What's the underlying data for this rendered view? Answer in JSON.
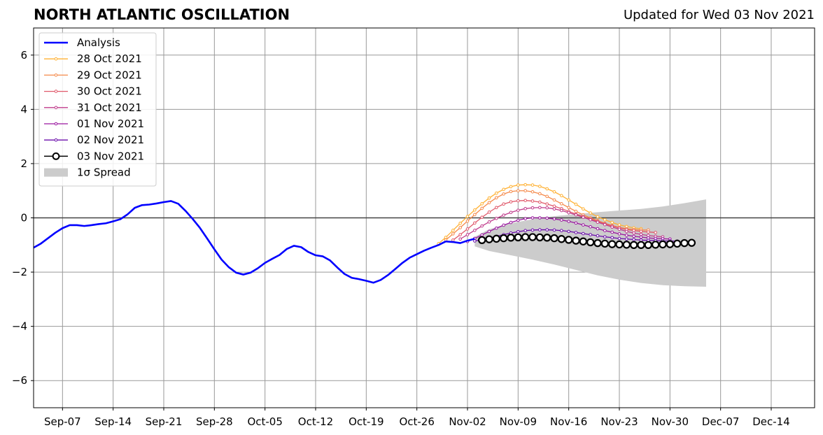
{
  "header": {
    "title": "NORTH ATLANTIC OSCILLATION",
    "updated": "Updated for Wed 03 Nov 2021"
  },
  "chart_data": {
    "type": "line",
    "title": "NORTH ATLANTIC OSCILLATION",
    "subtitle": "Updated for Wed 03 Nov 2021",
    "xlabel": "",
    "ylabel": "",
    "x_range": [
      "2021-09-03",
      "2021-12-20"
    ],
    "ylim": [
      -7,
      7
    ],
    "y_ticks": [
      -6,
      -4,
      -2,
      0,
      2,
      4,
      6
    ],
    "y_tick_labels": [
      "−6",
      "−4",
      "−2",
      "0",
      "2",
      "4",
      "6"
    ],
    "x_ticks": [
      "2021-09-07",
      "2021-09-14",
      "2021-09-21",
      "2021-09-28",
      "2021-10-05",
      "2021-10-12",
      "2021-10-19",
      "2021-10-26",
      "2021-11-02",
      "2021-11-09",
      "2021-11-16",
      "2021-11-23",
      "2021-11-30",
      "2021-12-07",
      "2021-12-14"
    ],
    "x_tick_labels": [
      "Sep-07",
      "Sep-14",
      "Sep-21",
      "Sep-28",
      "Oct-05",
      "Oct-12",
      "Oct-19",
      "Oct-26",
      "Nov-02",
      "Nov-09",
      "Nov-16",
      "Nov-23",
      "Nov-30",
      "Dec-07",
      "Dec-14"
    ],
    "grid": true,
    "zero_line": true,
    "legend_position": "top-left",
    "analysis": {
      "name": "Analysis",
      "color": "#0000ff",
      "dates": [
        "2021-09-03",
        "2021-09-04",
        "2021-09-05",
        "2021-09-06",
        "2021-09-07",
        "2021-09-08",
        "2021-09-09",
        "2021-09-10",
        "2021-09-11",
        "2021-09-12",
        "2021-09-13",
        "2021-09-14",
        "2021-09-15",
        "2021-09-16",
        "2021-09-17",
        "2021-09-18",
        "2021-09-19",
        "2021-09-20",
        "2021-09-21",
        "2021-09-22",
        "2021-09-23",
        "2021-09-24",
        "2021-09-25",
        "2021-09-26",
        "2021-09-27",
        "2021-09-28",
        "2021-09-29",
        "2021-09-30",
        "2021-10-01",
        "2021-10-02",
        "2021-10-03",
        "2021-10-04",
        "2021-10-05",
        "2021-10-06",
        "2021-10-07",
        "2021-10-08",
        "2021-10-09",
        "2021-10-10",
        "2021-10-11",
        "2021-10-12",
        "2021-10-13",
        "2021-10-14",
        "2021-10-15",
        "2021-10-16",
        "2021-10-17",
        "2021-10-18",
        "2021-10-19",
        "2021-10-20",
        "2021-10-21",
        "2021-10-22",
        "2021-10-23",
        "2021-10-24",
        "2021-10-25",
        "2021-10-26",
        "2021-10-27",
        "2021-10-28",
        "2021-10-29",
        "2021-10-30",
        "2021-10-31",
        "2021-11-01",
        "2021-11-02",
        "2021-11-03"
      ],
      "values": [
        -1.1,
        -0.95,
        -0.75,
        -0.55,
        -0.38,
        -0.27,
        -0.27,
        -0.3,
        -0.27,
        -0.23,
        -0.2,
        -0.13,
        -0.05,
        0.13,
        0.37,
        0.47,
        0.49,
        0.53,
        0.58,
        0.62,
        0.52,
        0.26,
        -0.04,
        -0.37,
        -0.76,
        -1.16,
        -1.54,
        -1.82,
        -2.02,
        -2.09,
        -2.02,
        -1.86,
        -1.66,
        -1.51,
        -1.37,
        -1.15,
        -1.03,
        -1.08,
        -1.26,
        -1.38,
        -1.42,
        -1.57,
        -1.83,
        -2.07,
        -2.21,
        -2.26,
        -2.32,
        -2.39,
        -2.29,
        -2.11,
        -1.89,
        -1.66,
        -1.47,
        -1.34,
        -1.21,
        -1.1,
        -1.0,
        -0.87,
        -0.89,
        -0.93,
        -0.84,
        -0.77
      ]
    },
    "spread": {
      "name": "1σ Spread",
      "color": "#cccccc",
      "dates": [
        "2021-11-03",
        "2021-11-05",
        "2021-11-08",
        "2021-11-11",
        "2021-11-14",
        "2021-11-17",
        "2021-11-20",
        "2021-11-23",
        "2021-11-26",
        "2021-11-29",
        "2021-12-02",
        "2021-12-05"
      ],
      "upper": [
        -0.7,
        -0.42,
        -0.2,
        -0.05,
        0.06,
        0.14,
        0.21,
        0.27,
        0.33,
        0.42,
        0.54,
        0.68
      ],
      "lower": [
        -1.05,
        -1.22,
        -1.38,
        -1.54,
        -1.72,
        -1.92,
        -2.12,
        -2.28,
        -2.4,
        -2.48,
        -2.52,
        -2.54
      ]
    },
    "series": [
      {
        "name": "28 Oct 2021",
        "color": "#ffb133",
        "start": "2021-10-29",
        "values": [
          -0.95,
          -0.72,
          -0.46,
          -0.2,
          0.05,
          0.29,
          0.52,
          0.73,
          0.91,
          1.05,
          1.15,
          1.21,
          1.22,
          1.21,
          1.16,
          1.07,
          0.96,
          0.82,
          0.66,
          0.5,
          0.33,
          0.18,
          0.04,
          -0.07,
          -0.17,
          -0.26,
          -0.32,
          -0.37,
          -0.4
        ]
      },
      {
        "name": "29 Oct 2021",
        "color": "#f58a4b",
        "start": "2021-10-30",
        "values": [
          -0.82,
          -0.59,
          -0.36,
          -0.12,
          0.12,
          0.35,
          0.56,
          0.74,
          0.88,
          0.97,
          1.0,
          1.0,
          0.96,
          0.89,
          0.79,
          0.66,
          0.52,
          0.38,
          0.24,
          0.11,
          0.0,
          -0.1,
          -0.2,
          -0.28,
          -0.35,
          -0.4,
          -0.43,
          -0.45,
          -0.45
        ]
      },
      {
        "name": "30 Oct 2021",
        "color": "#e0586a",
        "start": "2021-10-31",
        "values": [
          -0.82,
          -0.62,
          -0.41,
          -0.19,
          0.02,
          0.21,
          0.38,
          0.51,
          0.59,
          0.63,
          0.64,
          0.62,
          0.58,
          0.51,
          0.43,
          0.34,
          0.24,
          0.14,
          0.05,
          -0.04,
          -0.13,
          -0.22,
          -0.3,
          -0.37,
          -0.43,
          -0.47,
          -0.5,
          -0.52,
          -0.54
        ]
      },
      {
        "name": "31 Oct 2021",
        "color": "#c03c8c",
        "start": "2021-11-01",
        "values": [
          -0.78,
          -0.62,
          -0.46,
          -0.3,
          -0.15,
          -0.02,
          0.1,
          0.2,
          0.28,
          0.34,
          0.37,
          0.38,
          0.37,
          0.33,
          0.27,
          0.19,
          0.11,
          0.02,
          -0.07,
          -0.16,
          -0.25,
          -0.34,
          -0.42,
          -0.5,
          -0.56,
          -0.61,
          -0.65,
          -0.68,
          -0.7
        ]
      },
      {
        "name": "01 Nov 2021",
        "color": "#9a169f",
        "start": "2021-11-02",
        "values": [
          -0.87,
          -0.76,
          -0.63,
          -0.5,
          -0.38,
          -0.27,
          -0.17,
          -0.09,
          -0.03,
          0.0,
          0.0,
          -0.01,
          -0.04,
          -0.08,
          -0.13,
          -0.19,
          -0.26,
          -0.33,
          -0.4,
          -0.47,
          -0.53,
          -0.59,
          -0.64,
          -0.68,
          -0.71,
          -0.74,
          -0.76,
          -0.77,
          -0.78
        ]
      },
      {
        "name": "02 Nov 2021",
        "color": "#6b0dab",
        "start": "2021-11-03",
        "values": [
          -0.85,
          -0.8,
          -0.74,
          -0.68,
          -0.62,
          -0.56,
          -0.51,
          -0.47,
          -0.45,
          -0.44,
          -0.44,
          -0.45,
          -0.47,
          -0.5,
          -0.54,
          -0.58,
          -0.62,
          -0.66,
          -0.7,
          -0.73,
          -0.76,
          -0.78,
          -0.8,
          -0.82,
          -0.83,
          -0.84,
          -0.85,
          -0.85,
          -0.86
        ]
      },
      {
        "name": "03 Nov 2021",
        "color": "#000000",
        "start": "2021-11-04",
        "values": [
          -0.82,
          -0.79,
          -0.77,
          -0.75,
          -0.73,
          -0.72,
          -0.71,
          -0.71,
          -0.72,
          -0.73,
          -0.75,
          -0.78,
          -0.81,
          -0.84,
          -0.87,
          -0.9,
          -0.93,
          -0.95,
          -0.97,
          -0.98,
          -0.99,
          -1.0,
          -1.0,
          -1.0,
          -0.99,
          -0.98,
          -0.97,
          -0.95,
          -0.93,
          -0.92
        ]
      }
    ]
  }
}
